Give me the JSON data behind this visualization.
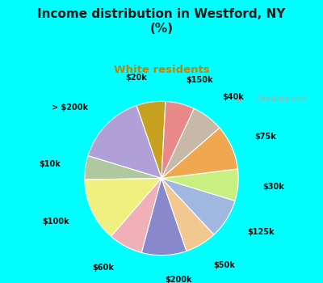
{
  "title": "Income distribution in Westford, NY\n(%)",
  "subtitle": "White residents",
  "background_color": "#00FFFF",
  "chart_bg_top": "#d0f0e8",
  "chart_bg_bottom": "#e8f8f0",
  "title_color": "#1a1a1a",
  "subtitle_color": "#b8860b",
  "labels": [
    "$20k",
    "> $200k",
    "$10k",
    "$100k",
    "$60k",
    "$200k",
    "$50k",
    "$125k",
    "$30k",
    "$75k",
    "$40k",
    "$150k"
  ],
  "values": [
    5.5,
    13.5,
    4.5,
    12.0,
    6.5,
    8.5,
    6.0,
    7.5,
    6.0,
    8.5,
    6.0,
    5.5
  ],
  "colors": [
    "#c8a020",
    "#b0a0d8",
    "#b0c8a0",
    "#f0f080",
    "#f0b0b8",
    "#8888cc",
    "#f0c890",
    "#a0b8e0",
    "#c8f080",
    "#f0a850",
    "#c8b8a8",
    "#e88888"
  ],
  "startangle": 87,
  "watermark": "  City-Data.com"
}
